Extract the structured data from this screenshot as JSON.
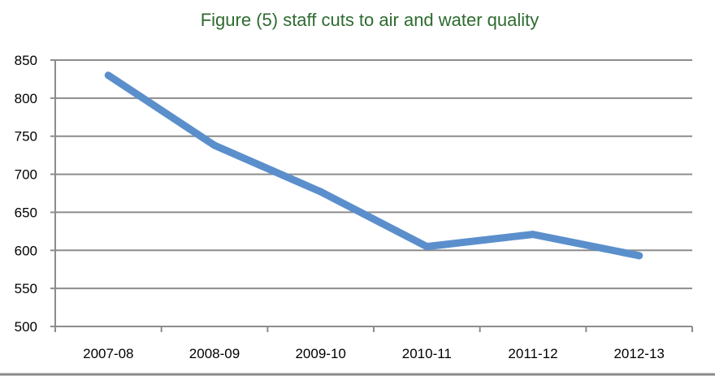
{
  "chart_data": {
    "type": "line",
    "title": "Figure (5) staff cuts to air and water quality",
    "xlabel": "",
    "ylabel": "",
    "categories": [
      "2007-08",
      "2008-09",
      "2009-10",
      "2010-11",
      "2011-12",
      "2012-13"
    ],
    "series": [
      {
        "values": [
          830,
          738,
          677,
          605,
          621,
          593
        ]
      }
    ],
    "ylim": [
      500,
      850
    ],
    "yticks": [
      850,
      800,
      750,
      700,
      650,
      600,
      550,
      500
    ],
    "grid": true,
    "legend": "none"
  },
  "colors": {
    "line": "#5b8fcc",
    "grid": "#8c8c8c",
    "title": "#2e6b30",
    "bottom_border": "#888888"
  }
}
